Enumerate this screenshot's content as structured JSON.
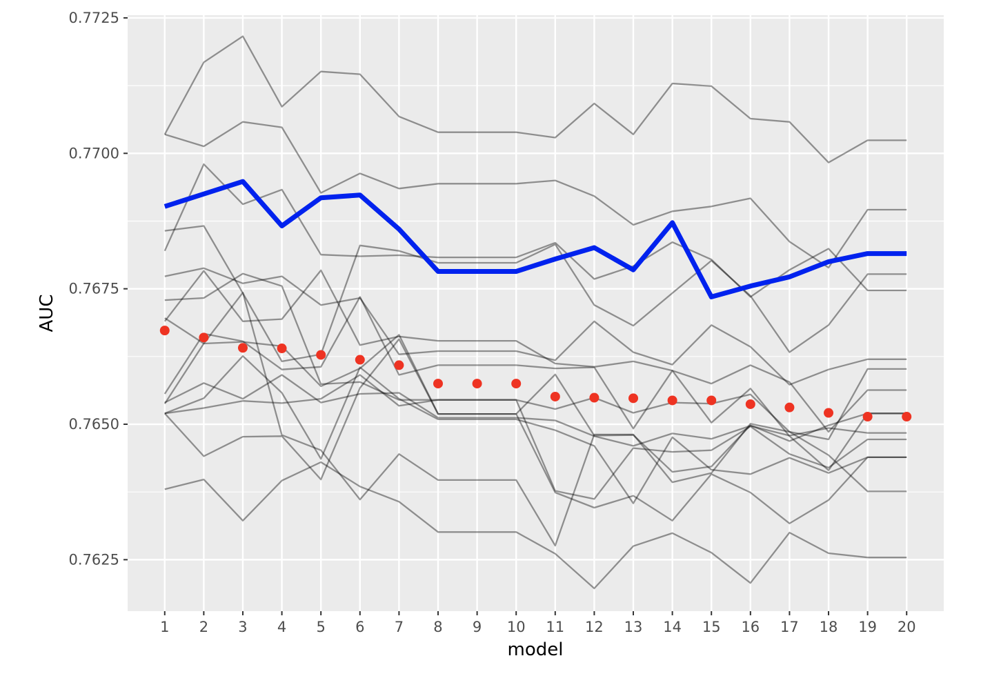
{
  "chart_data": {
    "type": "line",
    "xlabel": "model",
    "ylabel": "AUC",
    "x": [
      1,
      2,
      3,
      4,
      5,
      6,
      7,
      8,
      9,
      10,
      11,
      12,
      13,
      14,
      15,
      16,
      17,
      18,
      19,
      20
    ],
    "xlim": [
      0.05,
      20.95
    ],
    "ylim": [
      0.76155,
      0.77255
    ],
    "x_ticks": [
      "1",
      "2",
      "3",
      "4",
      "5",
      "6",
      "7",
      "8",
      "9",
      "10",
      "11",
      "12",
      "13",
      "14",
      "15",
      "16",
      "17",
      "18",
      "19",
      "20"
    ],
    "y_ticks": [
      "0.7625",
      "0.7650",
      "0.7675",
      "0.7700",
      "0.7725"
    ],
    "grid": true,
    "background": "#ebebeb",
    "gray_series_color": "#000000",
    "highlight_color": "#0022ee",
    "mean_point_color": "#ee3322",
    "gray_series": [
      [
        0.77035,
        0.77168,
        0.77216,
        0.77086,
        0.77151,
        0.77146,
        0.77068,
        0.77039,
        0.77039,
        0.77039,
        0.77029,
        0.77092,
        0.77035,
        0.77129,
        0.77124,
        0.77064,
        0.77058,
        0.76983,
        0.77024,
        0.77024
      ],
      [
        0.77035,
        0.77013,
        0.77058,
        0.77048,
        0.76927,
        0.76963,
        0.76935,
        0.76944,
        0.76944,
        0.76944,
        0.7695,
        0.76921,
        0.76868,
        0.76893,
        0.76902,
        0.76917,
        0.76837,
        0.76789,
        0.76896,
        0.76896
      ],
      [
        0.7682,
        0.7698,
        0.76906,
        0.76933,
        0.76813,
        0.7681,
        0.76812,
        0.76808,
        0.76808,
        0.76808,
        0.76835,
        0.76768,
        0.76792,
        0.76836,
        0.76804,
        0.76735,
        0.76785,
        0.76824,
        0.76747,
        0.76747
      ],
      [
        0.76857,
        0.76866,
        0.76742,
        0.76616,
        0.76629,
        0.7683,
        0.7682,
        0.76798,
        0.76798,
        0.76798,
        0.76832,
        0.7672,
        0.76682,
        0.76742,
        0.76802,
        0.76737,
        0.76633,
        0.76683,
        0.76777,
        0.76777
      ],
      [
        0.76773,
        0.76788,
        0.7676,
        0.76773,
        0.7672,
        0.76733,
        0.76629,
        0.76635,
        0.76635,
        0.76635,
        0.76618,
        0.7669,
        0.76633,
        0.7661,
        0.76683,
        0.76643,
        0.76573,
        0.76601,
        0.7662,
        0.7662
      ],
      [
        0.76729,
        0.76733,
        0.76778,
        0.76755,
        0.76574,
        0.76578,
        0.76545,
        0.76545,
        0.76545,
        0.76545,
        0.76528,
        0.76549,
        0.76521,
        0.7654,
        0.76538,
        0.76555,
        0.76486,
        0.76472,
        0.76602,
        0.76602
      ],
      [
        0.7669,
        0.76783,
        0.7669,
        0.76694,
        0.76784,
        0.76646,
        0.76662,
        0.76654,
        0.76654,
        0.76654,
        0.76612,
        0.76606,
        0.76616,
        0.76599,
        0.76575,
        0.76609,
        0.76578,
        0.76486,
        0.76563,
        0.76563
      ],
      [
        0.76556,
        0.76667,
        0.76653,
        0.76601,
        0.76606,
        0.76735,
        0.76591,
        0.76609,
        0.76609,
        0.76609,
        0.76603,
        0.76605,
        0.76492,
        0.76599,
        0.76503,
        0.76566,
        0.76478,
        0.76415,
        0.7652,
        0.7652
      ],
      [
        0.76538,
        0.76649,
        0.76652,
        0.76644,
        0.7657,
        0.76603,
        0.76665,
        0.76519,
        0.76519,
        0.76519,
        0.76592,
        0.76479,
        0.7648,
        0.76412,
        0.76422,
        0.76498,
        0.76469,
        0.76498,
        0.7652,
        0.7652
      ],
      [
        0.7654,
        0.76576,
        0.76547,
        0.76591,
        0.7654,
        0.76556,
        0.76558,
        0.76512,
        0.76512,
        0.76512,
        0.76507,
        0.76478,
        0.7646,
        0.76483,
        0.76473,
        0.76497,
        0.76479,
        0.76493,
        0.76484,
        0.76484
      ],
      [
        0.7652,
        0.7653,
        0.76543,
        0.76539,
        0.76547,
        0.76591,
        0.76534,
        0.76545,
        0.76545,
        0.76545,
        0.76377,
        0.76362,
        0.76456,
        0.76449,
        0.76452,
        0.76496,
        0.76445,
        0.7642,
        0.76472,
        0.76472
      ],
      [
        0.7652,
        0.76548,
        0.76626,
        0.76558,
        0.76436,
        0.76605,
        0.76547,
        0.76509,
        0.76509,
        0.76509,
        0.76489,
        0.7646,
        0.76354,
        0.76476,
        0.76416,
        0.76408,
        0.76438,
        0.7641,
        0.76439,
        0.76439
      ],
      [
        0.7652,
        0.76441,
        0.76477,
        0.76478,
        0.76398,
        0.76567,
        0.76657,
        0.76519,
        0.76519,
        0.76519,
        0.76374,
        0.76346,
        0.76368,
        0.76322,
        0.76408,
        0.76374,
        0.76317,
        0.7636,
        0.76439,
        0.76439
      ],
      [
        0.7638,
        0.76398,
        0.76322,
        0.76396,
        0.7643,
        0.76385,
        0.76357,
        0.76301,
        0.76301,
        0.76301,
        0.76261,
        0.76197,
        0.76275,
        0.76299,
        0.76263,
        0.76207,
        0.763,
        0.76262,
        0.76254,
        0.76254
      ],
      [
        0.76696,
        0.76649,
        0.76743,
        0.7648,
        0.76452,
        0.76361,
        0.76445,
        0.76397,
        0.76397,
        0.76397,
        0.76276,
        0.76481,
        0.76481,
        0.76393,
        0.7641,
        0.76501,
        0.76486,
        0.76443,
        0.76376,
        0.76376
      ]
    ],
    "highlight_series": [
      0.76902,
      0.76925,
      0.76948,
      0.76866,
      0.76918,
      0.76923,
      0.7686,
      0.76782,
      0.76782,
      0.76782,
      0.76805,
      0.76826,
      0.76785,
      0.76872,
      0.76735,
      0.76755,
      0.76772,
      0.768,
      0.76815,
      0.76815
    ],
    "mean_points": [
      0.76673,
      0.7666,
      0.76641,
      0.7664,
      0.76628,
      0.76619,
      0.76609,
      0.76575,
      0.76575,
      0.76575,
      0.76551,
      0.76549,
      0.76548,
      0.76544,
      0.76544,
      0.76537,
      0.76531,
      0.76521,
      0.76514,
      0.76514
    ]
  }
}
